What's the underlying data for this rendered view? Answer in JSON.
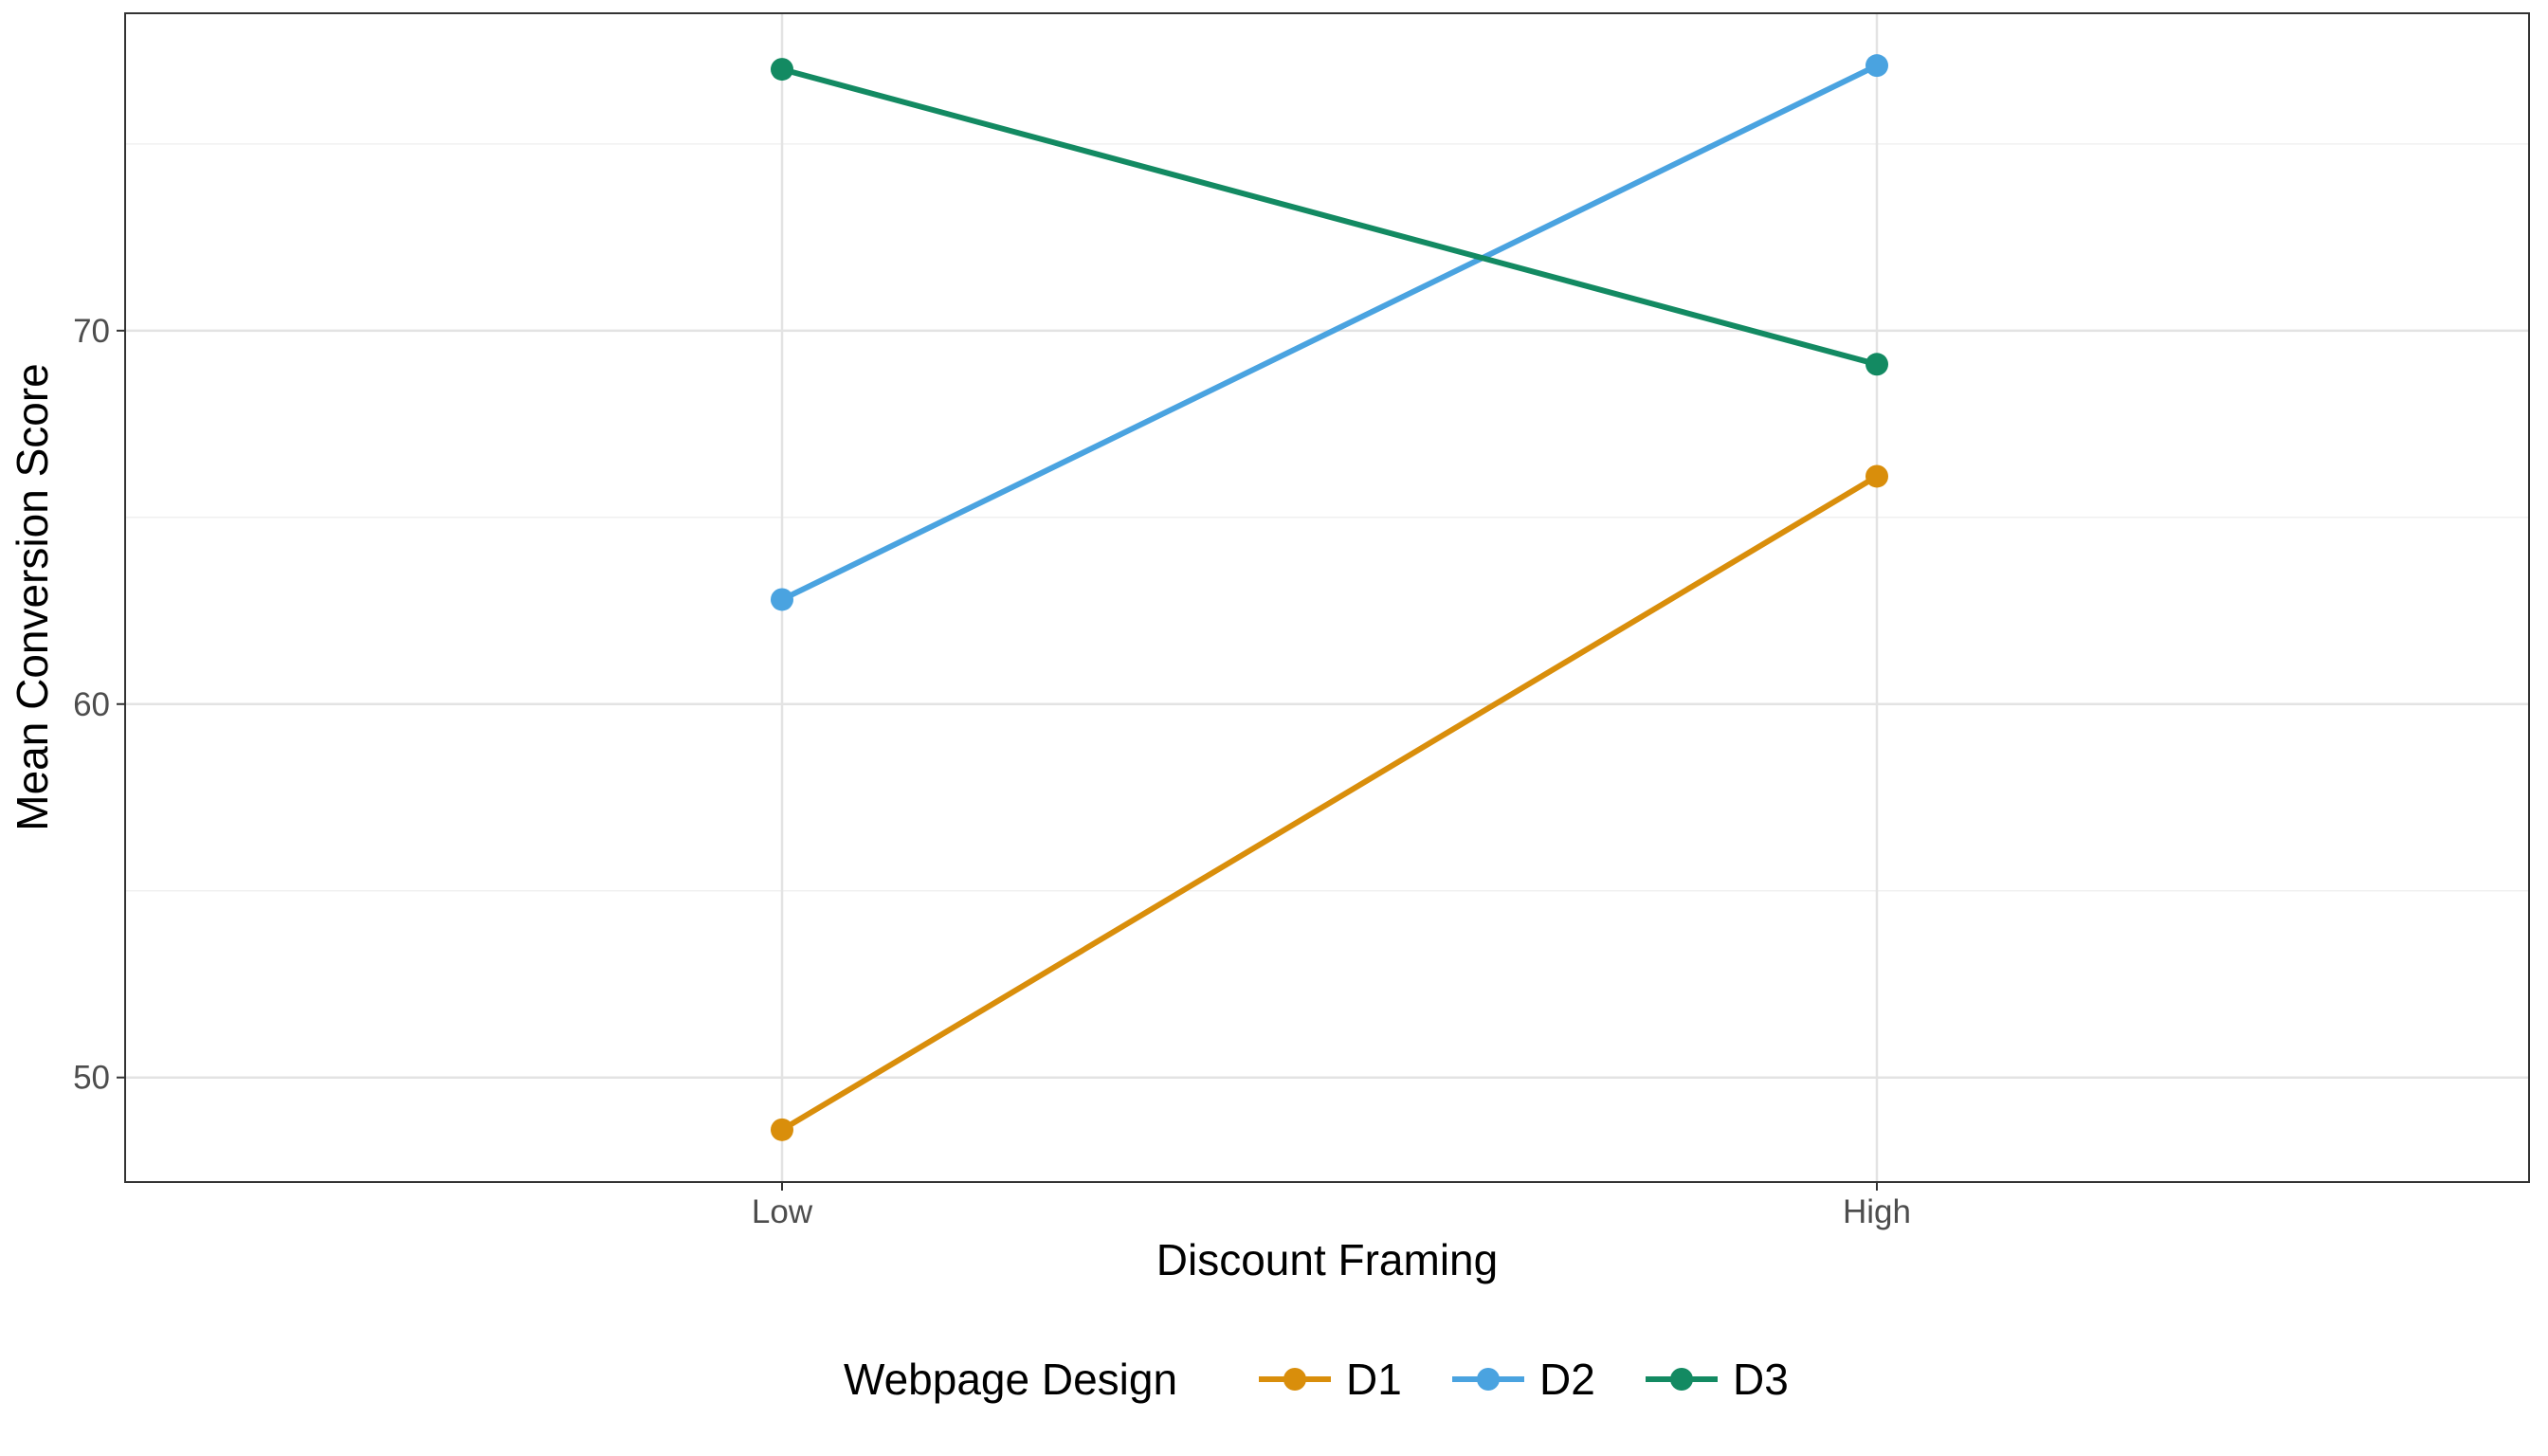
{
  "chart_data": {
    "type": "line",
    "title": "",
    "xlabel": "Discount Framing",
    "ylabel": "Mean Conversion Score",
    "categories": [
      "Low",
      "High"
    ],
    "ylim": [
      47.2,
      78.5
    ],
    "yticks": [
      50,
      60,
      70
    ],
    "yticks_minor": [
      55,
      65,
      75
    ],
    "grid": true,
    "legend": {
      "title": "Webpage Design",
      "position": "bottom"
    },
    "series": [
      {
        "name": "D1",
        "color": "#D98E0B",
        "values": [
          48.6,
          66.1
        ]
      },
      {
        "name": "D2",
        "color": "#4AA3E0",
        "values": [
          62.8,
          77.1
        ]
      },
      {
        "name": "D3",
        "color": "#138A62",
        "values": [
          77.0,
          69.1
        ]
      }
    ]
  }
}
